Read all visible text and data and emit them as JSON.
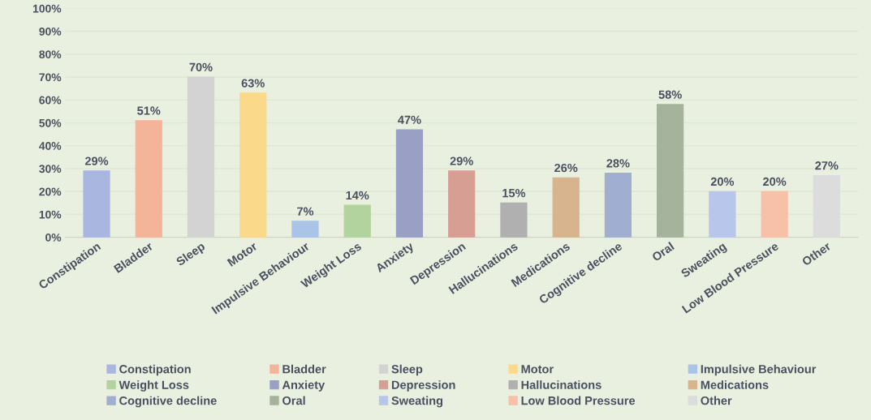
{
  "chart_data": {
    "type": "bar",
    "categories": [
      "Constipation",
      "Bladder",
      "Sleep",
      "Motor",
      "Impulsive Behaviour",
      "Weight Loss",
      "Anxiety",
      "Depression",
      "Hallucinations",
      "Medications",
      "Cognitive decline",
      "Oral",
      "Sweating",
      "Low Blood Pressure",
      "Other"
    ],
    "series": [
      {
        "name": "Constipation",
        "color": "#a9b6e0",
        "values": [
          29,
          null,
          null,
          null,
          null,
          null,
          null,
          null,
          null,
          null,
          null,
          null,
          null,
          null,
          null
        ],
        "value_labels": [
          "29%",
          null,
          null,
          null,
          null,
          null,
          null,
          null,
          null,
          null,
          null,
          null,
          null,
          null,
          null
        ]
      },
      {
        "name": "Bladder",
        "color": "#f4b49a",
        "values": [
          null,
          51,
          null,
          null,
          null,
          null,
          null,
          null,
          null,
          null,
          null,
          null,
          null,
          null,
          null
        ],
        "value_labels": [
          null,
          "51%",
          null,
          null,
          null,
          null,
          null,
          null,
          null,
          null,
          null,
          null,
          null,
          null,
          null
        ]
      },
      {
        "name": "Sleep",
        "color": "#d3d3d3",
        "values": [
          null,
          null,
          70,
          null,
          null,
          null,
          null,
          null,
          null,
          null,
          null,
          null,
          null,
          null,
          null
        ],
        "value_labels": [
          null,
          null,
          "70%",
          null,
          null,
          null,
          null,
          null,
          null,
          null,
          null,
          null,
          null,
          null,
          null
        ]
      },
      {
        "name": "Motor",
        "color": "#fbd98b",
        "values": [
          null,
          null,
          null,
          63,
          null,
          null,
          null,
          null,
          null,
          null,
          null,
          null,
          null,
          null,
          null
        ],
        "value_labels": [
          null,
          null,
          null,
          "63%",
          null,
          null,
          null,
          null,
          null,
          null,
          null,
          null,
          null,
          null,
          null
        ]
      },
      {
        "name": "Impulsive Behaviour",
        "color": "#a9c4e6",
        "values": [
          null,
          null,
          null,
          null,
          7,
          null,
          null,
          null,
          null,
          null,
          null,
          null,
          null,
          null,
          null
        ],
        "value_labels": [
          null,
          null,
          null,
          null,
          "7%",
          null,
          null,
          null,
          null,
          null,
          null,
          null,
          null,
          null,
          null
        ]
      },
      {
        "name": "Weight Loss",
        "color": "#b3d39e",
        "values": [
          null,
          null,
          null,
          null,
          null,
          14,
          null,
          null,
          null,
          null,
          null,
          null,
          null,
          null,
          null
        ],
        "value_labels": [
          null,
          null,
          null,
          null,
          null,
          "14%",
          null,
          null,
          null,
          null,
          null,
          null,
          null,
          null,
          null
        ]
      },
      {
        "name": "Anxiety",
        "color": "#9a9fc4",
        "values": [
          null,
          null,
          null,
          null,
          null,
          null,
          47,
          null,
          null,
          null,
          null,
          null,
          null,
          null,
          null
        ],
        "value_labels": [
          null,
          null,
          null,
          null,
          null,
          null,
          "47%",
          null,
          null,
          null,
          null,
          null,
          null,
          null,
          null
        ]
      },
      {
        "name": "Depression",
        "color": "#d79e94",
        "values": [
          null,
          null,
          null,
          null,
          null,
          null,
          null,
          29,
          null,
          null,
          null,
          null,
          null,
          null,
          null
        ],
        "value_labels": [
          null,
          null,
          null,
          null,
          null,
          null,
          null,
          "29%",
          null,
          null,
          null,
          null,
          null,
          null,
          null
        ]
      },
      {
        "name": "Hallucinations",
        "color": "#b0b0b0",
        "values": [
          null,
          null,
          null,
          null,
          null,
          null,
          null,
          null,
          15,
          null,
          null,
          null,
          null,
          null,
          null
        ],
        "value_labels": [
          null,
          null,
          null,
          null,
          null,
          null,
          null,
          null,
          "15%",
          null,
          null,
          null,
          null,
          null,
          null
        ]
      },
      {
        "name": "Medications",
        "color": "#d8b48e",
        "values": [
          null,
          null,
          null,
          null,
          null,
          null,
          null,
          null,
          null,
          26,
          null,
          null,
          null,
          null,
          null
        ],
        "value_labels": [
          null,
          null,
          null,
          null,
          null,
          null,
          null,
          null,
          null,
          "26%",
          null,
          null,
          null,
          null,
          null
        ]
      },
      {
        "name": "Cognitive decline",
        "color": "#a0aed0",
        "values": [
          null,
          null,
          null,
          null,
          null,
          null,
          null,
          null,
          null,
          null,
          28,
          null,
          null,
          null,
          null
        ],
        "value_labels": [
          null,
          null,
          null,
          null,
          null,
          null,
          null,
          null,
          null,
          null,
          "28%",
          null,
          null,
          null,
          null
        ]
      },
      {
        "name": "Oral",
        "color": "#a6b39c",
        "values": [
          null,
          null,
          null,
          null,
          null,
          null,
          null,
          null,
          null,
          null,
          null,
          58,
          null,
          null,
          null
        ],
        "value_labels": [
          null,
          null,
          null,
          null,
          null,
          null,
          null,
          null,
          null,
          null,
          null,
          "58%",
          null,
          null,
          null
        ]
      },
      {
        "name": "Sweating",
        "color": "#b9c6ec",
        "values": [
          null,
          null,
          null,
          null,
          null,
          null,
          null,
          null,
          null,
          null,
          null,
          null,
          20,
          null,
          null
        ],
        "value_labels": [
          null,
          null,
          null,
          null,
          null,
          null,
          null,
          null,
          null,
          null,
          null,
          null,
          "20%",
          null,
          null
        ]
      },
      {
        "name": "Low Blood Pressure",
        "color": "#f7c0a8",
        "values": [
          null,
          null,
          null,
          null,
          null,
          null,
          null,
          null,
          null,
          null,
          null,
          null,
          null,
          20,
          null
        ],
        "value_labels": [
          null,
          null,
          null,
          null,
          null,
          null,
          null,
          null,
          null,
          null,
          null,
          null,
          null,
          "20%",
          null
        ]
      },
      {
        "name": "Other",
        "color": "#dcdcdc",
        "values": [
          null,
          null,
          null,
          null,
          null,
          null,
          null,
          null,
          null,
          null,
          null,
          null,
          null,
          null,
          27
        ],
        "value_labels": [
          null,
          null,
          null,
          null,
          null,
          null,
          null,
          null,
          null,
          null,
          null,
          null,
          null,
          null,
          "27%"
        ]
      }
    ],
    "ylim": [
      0,
      100
    ],
    "yticks": [
      {
        "value": 0,
        "label": "0%"
      },
      {
        "value": 10,
        "label": "10%"
      },
      {
        "value": 20,
        "label": "20%"
      },
      {
        "value": 30,
        "label": "30%"
      },
      {
        "value": 40,
        "label": "40%"
      },
      {
        "value": 50,
        "label": "50%"
      },
      {
        "value": 60,
        "label": "60%"
      },
      {
        "value": 70,
        "label": "70%"
      },
      {
        "value": 80,
        "label": "80%"
      },
      {
        "value": 90,
        "label": "90%"
      },
      {
        "value": 100,
        "label": "100%"
      }
    ],
    "grid": "y",
    "legend": "bottom"
  }
}
